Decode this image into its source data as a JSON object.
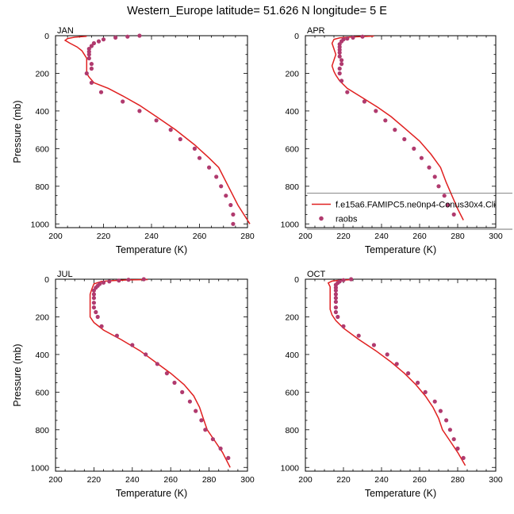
{
  "figure": {
    "title": "Western_Europe  latitude= 51.626 N longitude= 5 E"
  },
  "chart_data": [
    {
      "type": "line",
      "panel_label": "JAN",
      "xlabel": "Temperature (K)",
      "ylabel": "Pressure (mb)",
      "xlim": [
        200,
        280
      ],
      "ylim": [
        1020,
        0
      ],
      "y_reversed": true,
      "xticks": [
        200,
        220,
        240,
        260,
        280
      ],
      "yticks": [
        0,
        200,
        400,
        600,
        800,
        1000
      ],
      "series": [
        {
          "kind": "line",
          "color": "#e02020",
          "points": [
            [
              213,
              3
            ],
            [
              208,
              8
            ],
            [
              205,
              15
            ],
            [
              204,
              25
            ],
            [
              206,
              40
            ],
            [
              209,
              60
            ],
            [
              211,
              80
            ],
            [
              212,
              100
            ],
            [
              213,
              120
            ],
            [
              213,
              150
            ],
            [
              213,
              200
            ],
            [
              214,
              220
            ],
            [
              216,
              250
            ],
            [
              222,
              280
            ],
            [
              228,
              320
            ],
            [
              235,
              370
            ],
            [
              242,
              430
            ],
            [
              250,
              500
            ],
            [
              258,
              580
            ],
            [
              264,
              650
            ],
            [
              268,
              700
            ],
            [
              272,
              800
            ],
            [
              276,
              900
            ],
            [
              281,
              1000
            ]
          ]
        },
        {
          "kind": "scatter",
          "color": "#b03a6e",
          "points": [
            [
              235,
              0
            ],
            [
              230,
              5
            ],
            [
              225,
              10
            ],
            [
              220,
              20
            ],
            [
              218,
              30
            ],
            [
              216,
              40
            ],
            [
              215,
              55
            ],
            [
              214,
              70
            ],
            [
              214,
              85
            ],
            [
              214,
              100
            ],
            [
              214,
              120
            ],
            [
              215,
              150
            ],
            [
              215,
              175
            ],
            [
              213,
              200
            ],
            [
              215,
              250
            ],
            [
              219,
              300
            ],
            [
              228,
              350
            ],
            [
              235,
              400
            ],
            [
              242,
              450
            ],
            [
              248,
              500
            ],
            [
              252,
              550
            ],
            [
              258,
              600
            ],
            [
              260,
              650
            ],
            [
              264,
              700
            ],
            [
              267,
              750
            ],
            [
              269,
              800
            ],
            [
              271,
              850
            ],
            [
              273,
              900
            ],
            [
              274,
              950
            ],
            [
              274,
              1000
            ]
          ]
        }
      ]
    },
    {
      "type": "line",
      "panel_label": "APR",
      "xlabel": "Temperature (K)",
      "ylabel": "",
      "xlim": [
        200,
        300
      ],
      "ylim": [
        1020,
        0
      ],
      "y_reversed": true,
      "xticks": [
        200,
        220,
        240,
        260,
        280,
        300
      ],
      "yticks": [
        0,
        200,
        400,
        600,
        800,
        1000
      ],
      "legend": {
        "placement": "right",
        "entries": [
          {
            "label": "f.e15a6.FAMIPC5.ne0np4-Conus30x4.Cli",
            "kind": "line",
            "color": "#e02020"
          },
          {
            "label": "raobs",
            "kind": "marker",
            "color": "#b03a6e"
          }
        ]
      },
      "series": [
        {
          "kind": "line",
          "color": "#e02020",
          "points": [
            [
              236,
              2
            ],
            [
              228,
              5
            ],
            [
              222,
              8
            ],
            [
              218,
              12
            ],
            [
              215,
              20
            ],
            [
              214,
              40
            ],
            [
              215,
              70
            ],
            [
              216,
              100
            ],
            [
              215,
              130
            ],
            [
              214,
              160
            ],
            [
              215,
              190
            ],
            [
              216,
              210
            ],
            [
              218,
              240
            ],
            [
              222,
              280
            ],
            [
              230,
              330
            ],
            [
              238,
              380
            ],
            [
              245,
              430
            ],
            [
              252,
              490
            ],
            [
              260,
              560
            ],
            [
              266,
              630
            ],
            [
              271,
              700
            ],
            [
              274,
              780
            ],
            [
              277,
              850
            ],
            [
              280,
              920
            ],
            [
              283,
              980
            ]
          ]
        },
        {
          "kind": "scatter",
          "color": "#b03a6e",
          "points": [
            [
              230,
              5
            ],
            [
              225,
              10
            ],
            [
              222,
              15
            ],
            [
              220,
              20
            ],
            [
              219,
              30
            ],
            [
              218,
              45
            ],
            [
              218,
              60
            ],
            [
              218,
              75
            ],
            [
              218,
              90
            ],
            [
              218,
              110
            ],
            [
              219,
              130
            ],
            [
              219,
              150
            ],
            [
              218,
              175
            ],
            [
              218,
              200
            ],
            [
              219,
              240
            ],
            [
              222,
              300
            ],
            [
              231,
              350
            ],
            [
              237,
              400
            ],
            [
              242,
              450
            ],
            [
              247,
              500
            ],
            [
              252,
              550
            ],
            [
              257,
              600
            ],
            [
              261,
              650
            ],
            [
              265,
              700
            ],
            [
              268,
              750
            ],
            [
              270,
              800
            ],
            [
              273,
              850
            ],
            [
              275,
              900
            ],
            [
              278,
              950
            ]
          ]
        }
      ]
    },
    {
      "type": "line",
      "panel_label": "JUL",
      "xlabel": "Temperature (K)",
      "ylabel": "Pressure (mb)",
      "xlim": [
        200,
        300
      ],
      "ylim": [
        1020,
        0
      ],
      "y_reversed": true,
      "xticks": [
        200,
        220,
        240,
        260,
        280,
        300
      ],
      "yticks": [
        0,
        200,
        400,
        600,
        800,
        1000
      ],
      "series": [
        {
          "kind": "line",
          "color": "#e02020",
          "points": [
            [
              248,
              2
            ],
            [
              238,
              4
            ],
            [
              230,
              7
            ],
            [
              224,
              12
            ],
            [
              220,
              25
            ],
            [
              219,
              50
            ],
            [
              218,
              80
            ],
            [
              218,
              120
            ],
            [
              218,
              160
            ],
            [
              218,
              200
            ],
            [
              220,
              230
            ],
            [
              225,
              270
            ],
            [
              234,
              320
            ],
            [
              244,
              380
            ],
            [
              252,
              440
            ],
            [
              260,
              500
            ],
            [
              267,
              560
            ],
            [
              272,
              620
            ],
            [
              275,
              680
            ],
            [
              277,
              740
            ],
            [
              279,
              800
            ],
            [
              283,
              860
            ],
            [
              287,
              920
            ],
            [
              291,
              1000
            ]
          ]
        },
        {
          "kind": "scatter",
          "color": "#b03a6e",
          "points": [
            [
              246,
              0
            ],
            [
              238,
              3
            ],
            [
              233,
              7
            ],
            [
              228,
              12
            ],
            [
              225,
              18
            ],
            [
              223,
              25
            ],
            [
              222,
              35
            ],
            [
              221,
              45
            ],
            [
              220,
              60
            ],
            [
              220,
              80
            ],
            [
              220,
              100
            ],
            [
              220,
              125
            ],
            [
              220,
              150
            ],
            [
              221,
              175
            ],
            [
              222,
              200
            ],
            [
              224,
              250
            ],
            [
              232,
              300
            ],
            [
              240,
              350
            ],
            [
              247,
              400
            ],
            [
              253,
              450
            ],
            [
              258,
              500
            ],
            [
              262,
              550
            ],
            [
              266,
              600
            ],
            [
              270,
              650
            ],
            [
              273,
              700
            ],
            [
              276,
              750
            ],
            [
              278,
              800
            ],
            [
              282,
              850
            ],
            [
              286,
              900
            ],
            [
              290,
              950
            ]
          ]
        }
      ]
    },
    {
      "type": "line",
      "panel_label": "OCT",
      "xlabel": "Temperature (K)",
      "ylabel": "",
      "xlim": [
        200,
        300
      ],
      "ylim": [
        1020,
        0
      ],
      "y_reversed": true,
      "xticks": [
        200,
        220,
        240,
        260,
        280,
        300
      ],
      "yticks": [
        0,
        200,
        400,
        600,
        800,
        1000
      ],
      "series": [
        {
          "kind": "line",
          "color": "#e02020",
          "points": [
            [
              225,
              2
            ],
            [
              218,
              5
            ],
            [
              214,
              10
            ],
            [
              212,
              20
            ],
            [
              213,
              40
            ],
            [
              213,
              70
            ],
            [
              213,
              100
            ],
            [
              213,
              130
            ],
            [
              213,
              160
            ],
            [
              214,
              190
            ],
            [
              216,
              220
            ],
            [
              220,
              260
            ],
            [
              228,
              320
            ],
            [
              237,
              380
            ],
            [
              245,
              440
            ],
            [
              252,
              500
            ],
            [
              258,
              560
            ],
            [
              263,
              620
            ],
            [
              267,
              680
            ],
            [
              270,
              740
            ],
            [
              272,
              800
            ],
            [
              276,
              860
            ],
            [
              280,
              920
            ],
            [
              284,
              990
            ]
          ]
        },
        {
          "kind": "scatter",
          "color": "#b03a6e",
          "points": [
            [
              224,
              0
            ],
            [
              220,
              5
            ],
            [
              218,
              12
            ],
            [
              217,
              20
            ],
            [
              216,
              30
            ],
            [
              216,
              45
            ],
            [
              216,
              60
            ],
            [
              216,
              80
            ],
            [
              216,
              100
            ],
            [
              216,
              120
            ],
            [
              216,
              150
            ],
            [
              216,
              175
            ],
            [
              217,
              200
            ],
            [
              220,
              250
            ],
            [
              228,
              300
            ],
            [
              236,
              350
            ],
            [
              243,
              400
            ],
            [
              248,
              450
            ],
            [
              254,
              500
            ],
            [
              259,
              550
            ],
            [
              263,
              600
            ],
            [
              268,
              650
            ],
            [
              271,
              700
            ],
            [
              274,
              750
            ],
            [
              276,
              800
            ],
            [
              278,
              850
            ],
            [
              280,
              900
            ],
            [
              283,
              950
            ]
          ]
        }
      ]
    }
  ]
}
